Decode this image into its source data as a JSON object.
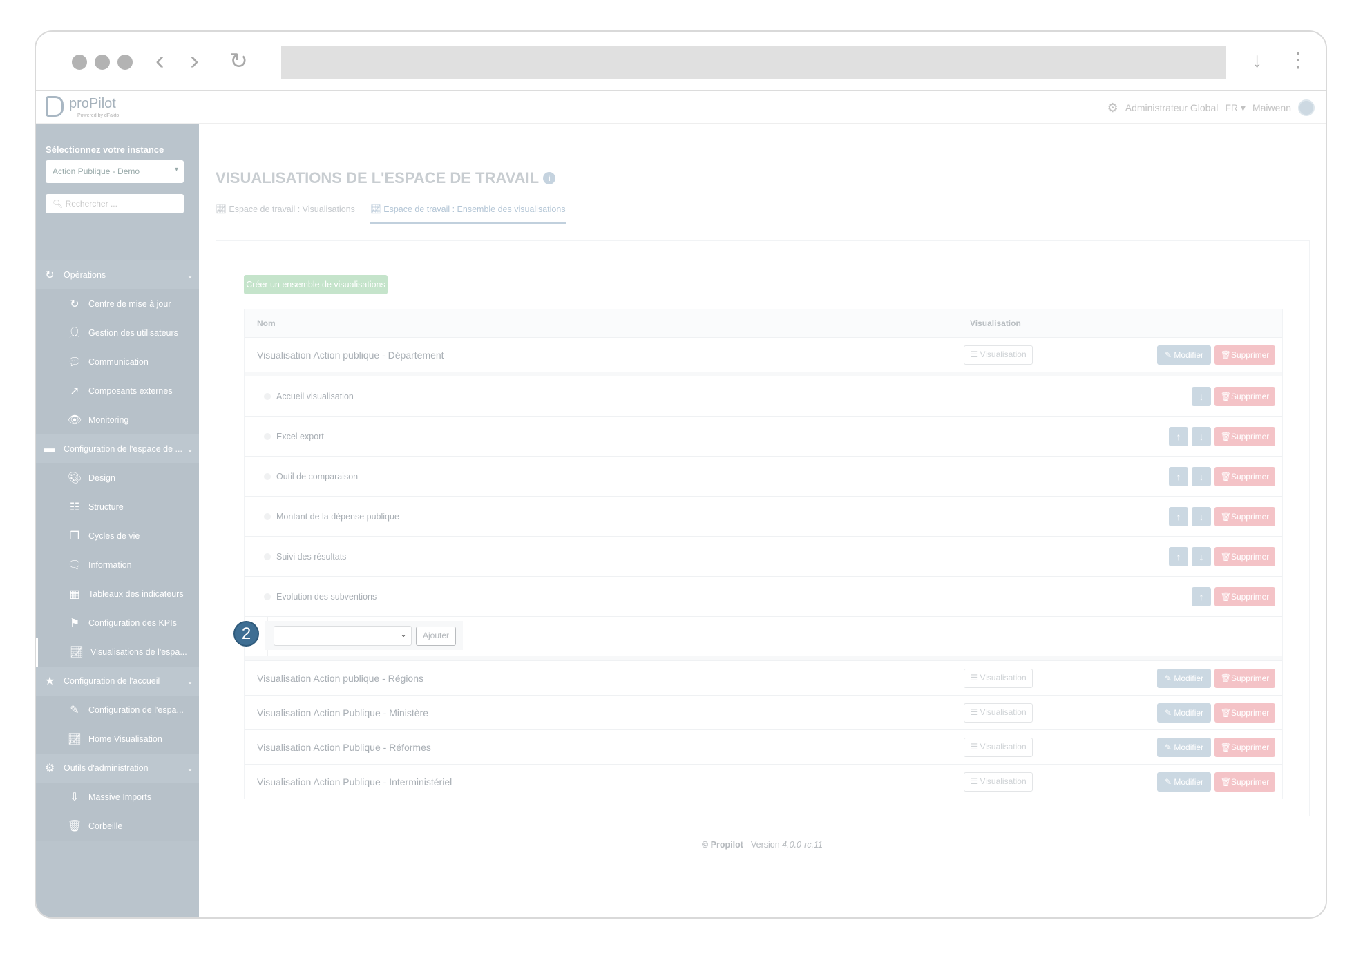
{
  "browser": {
    "icons": [
      "back-icon",
      "forward-icon",
      "reload-icon",
      "download-icon",
      "more-icon"
    ]
  },
  "app": {
    "logo_text": "proPilot",
    "logo_sub": "Powered by dFakto"
  },
  "userbar": {
    "role": "Administrateur Global",
    "lang": "FR",
    "user": "Maiwenn"
  },
  "sidebar": {
    "instance_label": "Sélectionnez votre instance",
    "instance_value": "Action Publique - Demo",
    "search_placeholder": "Rechercher ...",
    "items": [
      {
        "label": "Opérations",
        "icon": "refresh",
        "group": true
      },
      {
        "label": "Centre de mise à jour",
        "icon": "refresh"
      },
      {
        "label": "Gestion des utilisateurs",
        "icon": "user"
      },
      {
        "label": "Communication",
        "icon": "comments"
      },
      {
        "label": "Composants externes",
        "icon": "external"
      },
      {
        "label": "Monitoring",
        "icon": "eye"
      },
      {
        "label": "Configuration de l'espace de ...",
        "icon": "folder",
        "group": true
      },
      {
        "label": "Design",
        "icon": "palette"
      },
      {
        "label": "Structure",
        "icon": "sitemap"
      },
      {
        "label": "Cycles de vie",
        "icon": "copy"
      },
      {
        "label": "Information",
        "icon": "comment"
      },
      {
        "label": "Tableaux des indicateurs",
        "icon": "table"
      },
      {
        "label": "Configuration des KPIs",
        "icon": "flag"
      },
      {
        "label": "Visualisations de l'espa...",
        "icon": "chart",
        "active": true
      },
      {
        "label": "Configuration de l'accueil",
        "icon": "star",
        "group": true
      },
      {
        "label": "Configuration de l'espa...",
        "icon": "edit"
      },
      {
        "label": "Home Visualisation",
        "icon": "chart"
      },
      {
        "label": "Outils d'administration",
        "icon": "gear",
        "group": true
      },
      {
        "label": "Massive Imports",
        "icon": "download"
      },
      {
        "label": "Corbeille",
        "icon": "trash"
      }
    ]
  },
  "page": {
    "title": "VISUALISATIONS DE L'ESPACE DE TRAVAIL",
    "tabs": [
      {
        "label": "Espace de travail : Visualisations"
      },
      {
        "label": "Espace de travail : Ensemble des visualisations",
        "active": true
      }
    ],
    "create_label": "Créer un ensemble de visualisations",
    "columns": {
      "name": "Nom",
      "visualisation": "Visualisation"
    },
    "buttons": {
      "visualisation": "Visualisation",
      "modifier": "Modifier",
      "supprimer": "Supprimer",
      "ajouter": "Ajouter"
    },
    "expanded_set": "Visualisation Action publique - Département",
    "children": [
      {
        "label": "Accueil visualisation",
        "up": false,
        "down": true
      },
      {
        "label": "Excel export",
        "up": true,
        "down": true
      },
      {
        "label": "Outil de comparaison",
        "up": true,
        "down": true
      },
      {
        "label": "Montant de la dépense publique",
        "up": true,
        "down": true
      },
      {
        "label": "Suivi des résultats",
        "up": true,
        "down": true
      },
      {
        "label": "Evolution des subventions",
        "up": true,
        "down": false
      }
    ],
    "step_badge": "2",
    "other_sets": [
      "Visualisation Action publique - Régions",
      "Visualisation Action Publique - Ministère",
      "Visualisation Action Publique - Réformes",
      "Visualisation Action Publique - Interministériel"
    ]
  },
  "footer": {
    "brand": "© Propilot",
    "sep": " - Version ",
    "version": "4.0.0-rc.11"
  },
  "colors": {
    "sidebar": "#bac4cc",
    "create": "#c5e4cb",
    "modify": "#cbd8e2",
    "delete": "#f4c3c7",
    "badge": "#3e6e93"
  }
}
